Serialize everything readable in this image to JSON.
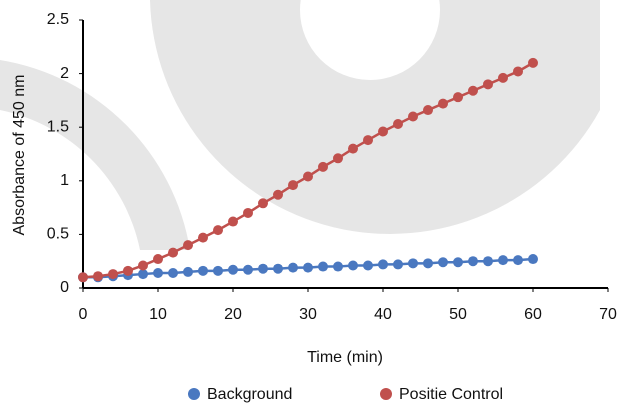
{
  "chart_data": {
    "type": "line",
    "x_label": "Time (min)",
    "y_label": "Absorbance of 450 nm",
    "x": [
      0,
      2,
      4,
      6,
      8,
      10,
      12,
      14,
      16,
      18,
      20,
      22,
      24,
      26,
      28,
      30,
      32,
      34,
      36,
      38,
      40,
      42,
      44,
      46,
      48,
      50,
      52,
      54,
      56,
      58,
      60
    ],
    "series": [
      {
        "name": "Background",
        "color": "#4a78c0",
        "values": [
          0.1,
          0.1,
          0.11,
          0.12,
          0.13,
          0.14,
          0.14,
          0.15,
          0.16,
          0.16,
          0.17,
          0.17,
          0.18,
          0.18,
          0.19,
          0.19,
          0.2,
          0.2,
          0.21,
          0.21,
          0.22,
          0.22,
          0.23,
          0.23,
          0.24,
          0.24,
          0.25,
          0.25,
          0.26,
          0.26,
          0.27
        ]
      },
      {
        "name": "Positie Control",
        "color": "#c0504d",
        "values": [
          0.1,
          0.11,
          0.13,
          0.16,
          0.21,
          0.27,
          0.33,
          0.4,
          0.47,
          0.54,
          0.62,
          0.7,
          0.79,
          0.87,
          0.96,
          1.04,
          1.13,
          1.21,
          1.3,
          1.38,
          1.46,
          1.53,
          1.6,
          1.66,
          1.72,
          1.78,
          1.84,
          1.9,
          1.96,
          2.02,
          2.1
        ]
      }
    ],
    "xlim": [
      0,
      70
    ],
    "xticks": [
      0,
      10,
      20,
      30,
      40,
      50,
      60,
      70
    ],
    "ylim": [
      0,
      2.5
    ],
    "yticks": [
      0,
      0.5,
      1,
      1.5,
      2,
      2.5
    ]
  }
}
